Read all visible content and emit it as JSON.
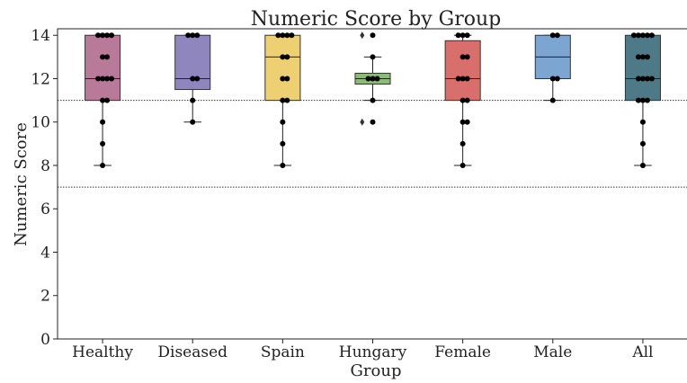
{
  "chart_data": {
    "type": "box",
    "title": "Numeric Score by Group",
    "xlabel": "Group",
    "ylabel": "Numeric Score",
    "ylim": [
      0,
      14.3
    ],
    "yticks": [
      0,
      2,
      4,
      6,
      8,
      10,
      12,
      14
    ],
    "reference_lines": [
      11,
      7
    ],
    "grid": false,
    "categories": [
      "Healthy",
      "Diseased",
      "Spain",
      "Hungary",
      "Female",
      "Male",
      "All"
    ],
    "boxes": [
      {
        "name": "Healthy",
        "color": "#b97a9a",
        "q1": 11,
        "median": 12,
        "q3": 14,
        "whisker_low": 8,
        "whisker_high": 14,
        "fliers": [],
        "points": [
          14,
          14,
          14,
          14,
          13,
          13,
          12,
          12,
          12,
          12,
          11,
          11,
          10,
          9,
          8
        ]
      },
      {
        "name": "Diseased",
        "color": "#8f86bd",
        "q1": 11.5,
        "median": 12,
        "q3": 14,
        "whisker_low": 10,
        "whisker_high": 14,
        "fliers": [],
        "points": [
          14,
          14,
          14,
          12,
          12,
          11,
          10
        ]
      },
      {
        "name": "Spain",
        "color": "#ecd072",
        "q1": 11,
        "median": 13,
        "q3": 14,
        "whisker_low": 8,
        "whisker_high": 14,
        "fliers": [],
        "points": [
          14,
          14,
          14,
          14,
          13,
          13,
          12,
          12,
          11,
          11,
          10,
          9,
          8
        ]
      },
      {
        "name": "Hungary",
        "color": "#8dba78",
        "q1": 11.75,
        "median": 12,
        "q3": 12.25,
        "whisker_low": 11,
        "whisker_high": 13,
        "fliers": [
          14,
          10
        ],
        "points": [
          14,
          13,
          12,
          12,
          12,
          11,
          10
        ]
      },
      {
        "name": "Female",
        "color": "#d86f6d",
        "q1": 11,
        "median": 12,
        "q3": 13.75,
        "whisker_low": 8,
        "whisker_high": 14,
        "fliers": [],
        "points": [
          14,
          14,
          14,
          13,
          13,
          12,
          12,
          12,
          11,
          11,
          10,
          10,
          9,
          8
        ]
      },
      {
        "name": "Male",
        "color": "#7ca5d2",
        "q1": 12,
        "median": 13,
        "q3": 14,
        "whisker_low": 11,
        "whisker_high": 14,
        "fliers": [],
        "points": [
          14,
          14,
          12,
          12,
          11
        ]
      },
      {
        "name": "All",
        "color": "#4d7a86",
        "q1": 11,
        "median": 12,
        "q3": 14,
        "whisker_low": 8,
        "whisker_high": 14,
        "fliers": [],
        "points": [
          14,
          14,
          14,
          14,
          14,
          13,
          13,
          13,
          12,
          12,
          12,
          12,
          11,
          11,
          11,
          10,
          9,
          8
        ]
      }
    ]
  }
}
